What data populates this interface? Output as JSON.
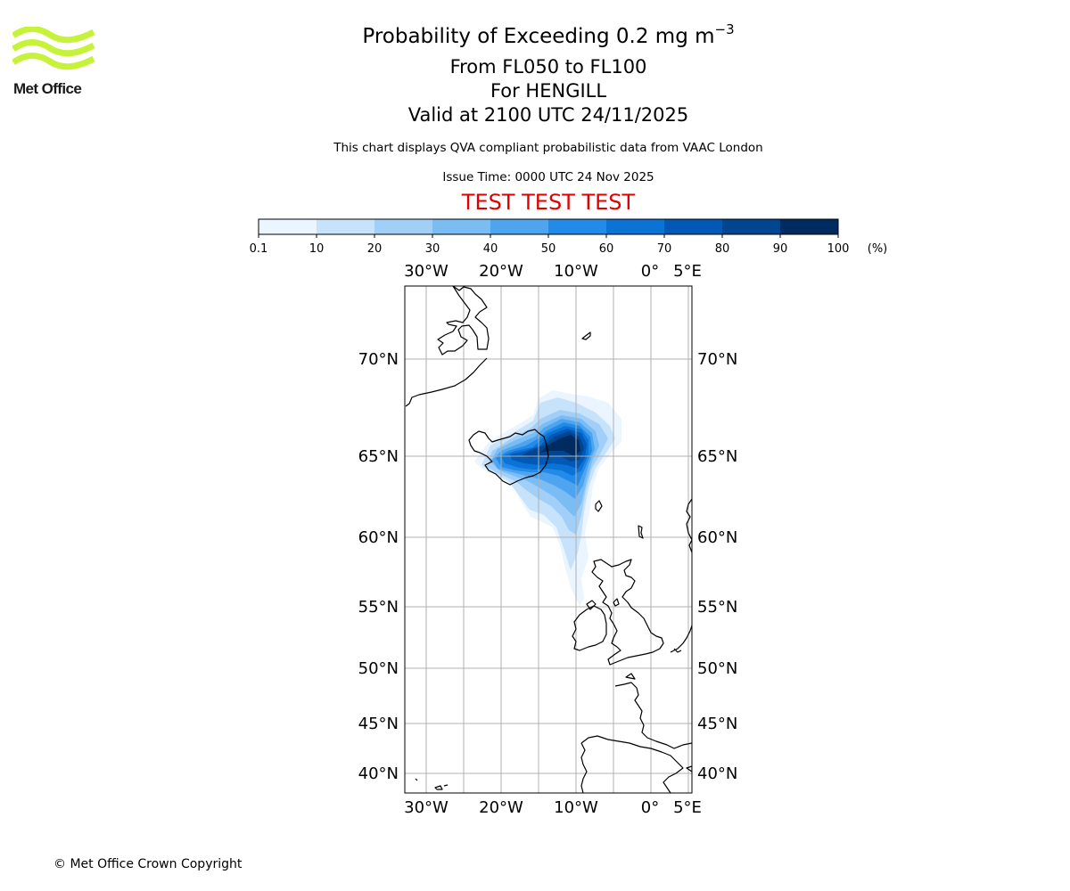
{
  "header": {
    "title": "Probability of Exceeding 0.2 mg m",
    "title_exponent": "−3",
    "level": "From FL050 to FL100",
    "volcano": "For HENGILL",
    "valid": "Valid at 2100 UTC 24/11/2025",
    "description": "This chart displays QVA compliant probabilistic data from VAAC London",
    "issue_time": "Issue Time: 0000 UTC 24 Nov 2025",
    "test_banner": "TEST TEST TEST"
  },
  "logo": {
    "text": "Met Office",
    "color": "#c6f23a"
  },
  "colorbar": {
    "ticks": [
      "0.1",
      "10",
      "20",
      "30",
      "40",
      "50",
      "60",
      "70",
      "80",
      "90",
      "100"
    ],
    "unit": "(%)",
    "colors": [
      "#eaf5ff",
      "#c7e3fb",
      "#a2cff7",
      "#7abcf4",
      "#4ea4ef",
      "#228be9",
      "#0b72d6",
      "#0059b7",
      "#004590",
      "#002b60"
    ]
  },
  "map": {
    "lon_labels": [
      "30°W",
      "20°W",
      "10°W",
      "0°",
      "5°E"
    ],
    "lat_labels": [
      "70°N",
      "65°N",
      "60°N",
      "55°N",
      "50°N",
      "45°N",
      "40°N"
    ],
    "coast_color": "#000000",
    "grid_color": "#b0b0b0"
  },
  "footer": {
    "copyright": "© Met Office Crown Copyright"
  }
}
